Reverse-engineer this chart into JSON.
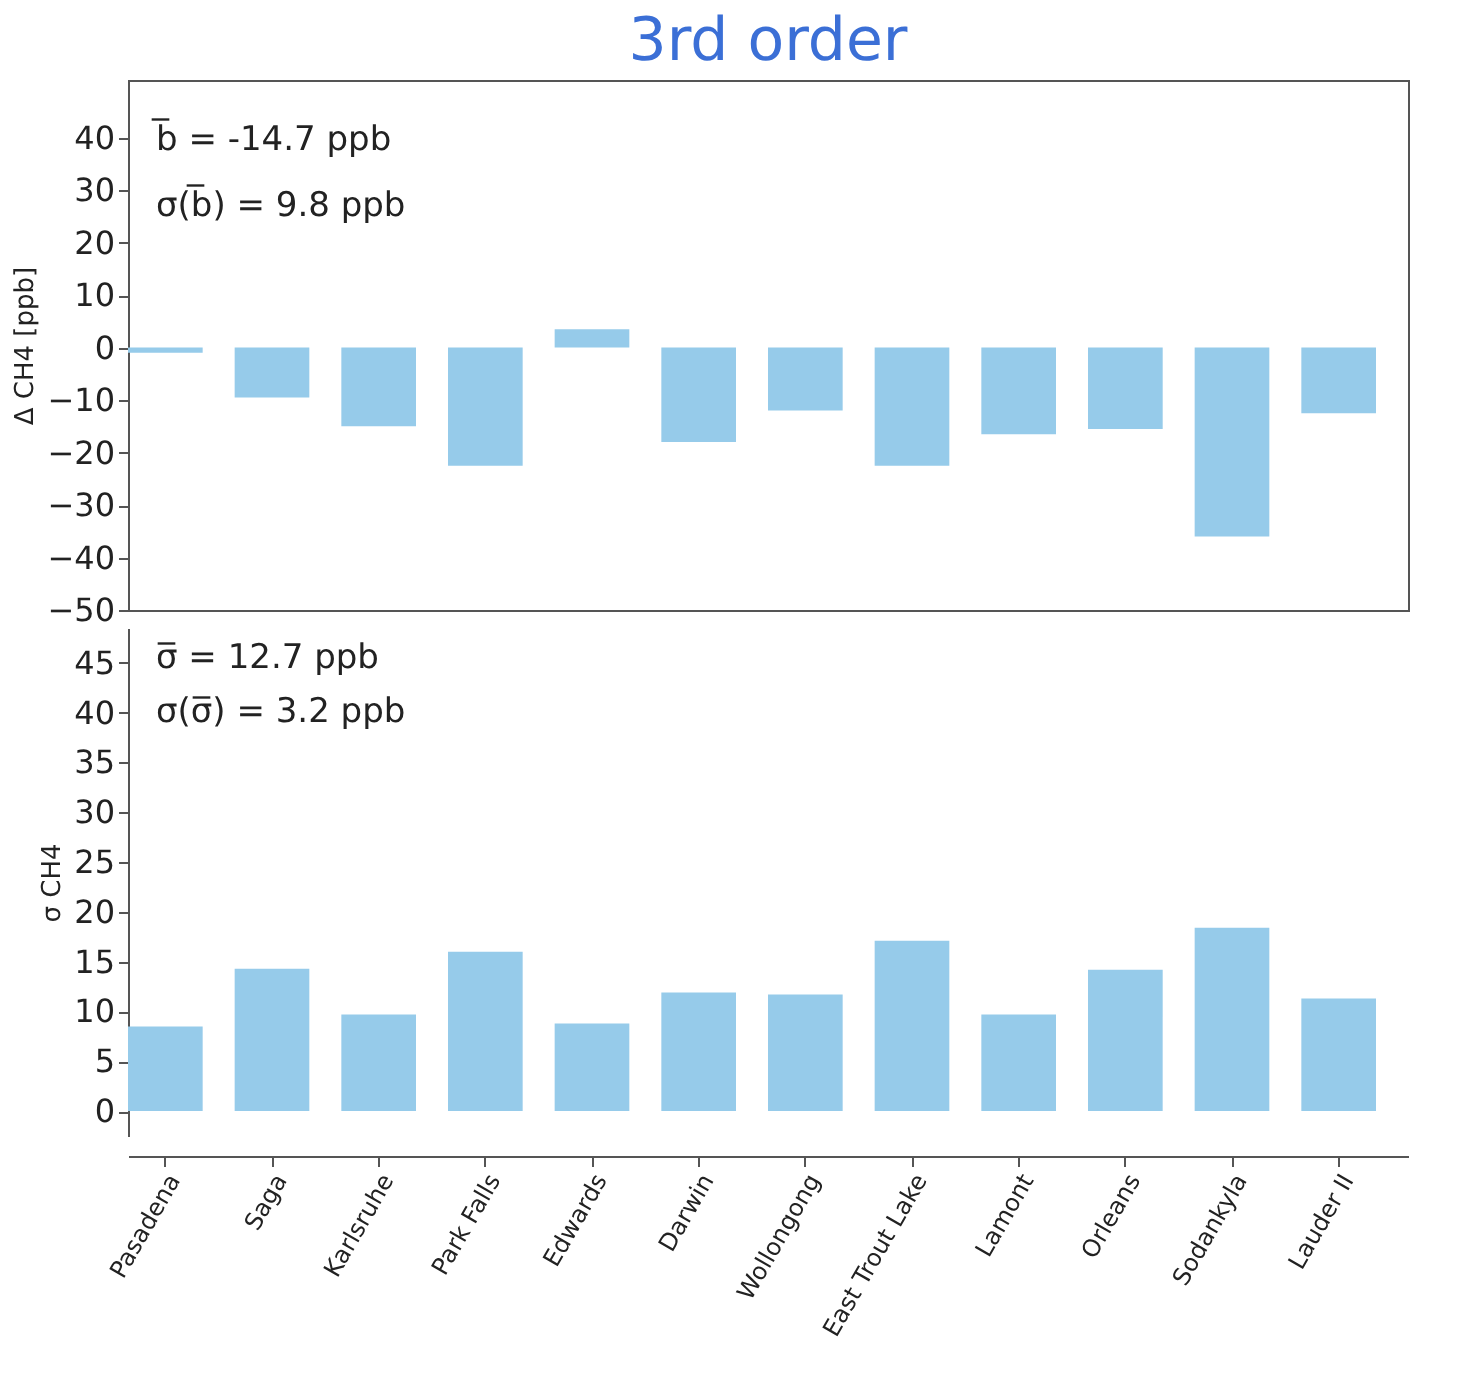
{
  "chart_data": [
    {
      "type": "bar",
      "title": "3rd order",
      "ylabel": "Δ CH4 [ppb]",
      "categories": [
        null,
        null,
        null,
        null,
        null,
        null,
        null,
        null,
        null,
        null,
        null,
        null
      ],
      "values": [
        -1,
        -9.5,
        -15,
        -22.5,
        3.5,
        -18,
        -12,
        -22.5,
        -16.5,
        -15.5,
        -36,
        -12.5
      ],
      "color": "#96cbea",
      "ylim": [
        -50,
        51
      ],
      "yticks": [
        -50,
        -40,
        -30,
        -20,
        -10,
        0,
        10,
        20,
        30,
        40
      ],
      "annotations": [
        "b̅ = -14.7 ppb",
        "σ(b̅) = 9.8 ppb"
      ],
      "tick_labels": "y",
      "grid": false
    },
    {
      "type": "bar",
      "ylabel": "σ CH4",
      "categories": [
        "Pasadena",
        "Saga",
        "Karlsruhe",
        "Park Falls",
        "Edwards",
        "Darwin",
        "Wollongong",
        "East Trout Lake",
        "Lamont",
        "Orleans",
        "Sodankyla",
        "Lauder II"
      ],
      "values": [
        8.5,
        14.3,
        9.7,
        16,
        8.8,
        11.9,
        11.7,
        17.1,
        9.7,
        14.2,
        18.4,
        11.3
      ],
      "color": "#96cbea",
      "ylim": [
        -2.5,
        48.5
      ],
      "yticks": [
        0,
        5,
        10,
        15,
        20,
        25,
        30,
        35,
        40,
        45
      ],
      "annotations": [
        "σ̅ = 12.7 ppb",
        "σ(σ̅) = 3.2 ppb"
      ],
      "grid": false
    }
  ]
}
